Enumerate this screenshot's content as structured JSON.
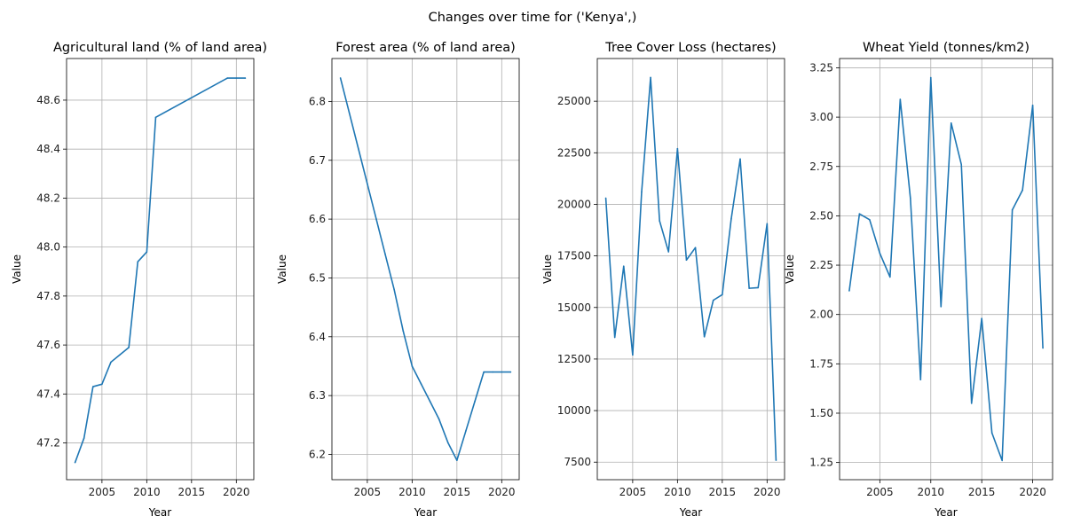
{
  "figure": {
    "suptitle": "Changes over time for ('Kenya',)",
    "line_color": "#1f77b4"
  },
  "chart_data": [
    {
      "type": "line",
      "title": "Agricultural land (% of land area)",
      "xlabel": "Year",
      "ylabel": "Value",
      "grid": true,
      "xlim": [
        2001.05,
        2021.95
      ],
      "ylim": [
        47.05,
        48.77
      ],
      "xticks": [
        2005,
        2010,
        2015,
        2020
      ],
      "yticks": [
        47.2,
        47.4,
        47.6,
        47.8,
        48.0,
        48.2,
        48.4,
        48.6
      ],
      "ytick_labels": [
        "47.2",
        "47.4",
        "47.6",
        "47.8",
        "48.0",
        "48.2",
        "48.4",
        "48.6"
      ],
      "x": [
        2002,
        2003,
        2004,
        2005,
        2006,
        2007,
        2008,
        2009,
        2010,
        2011,
        2019,
        2020,
        2021
      ],
      "y": [
        47.12,
        47.22,
        47.43,
        47.44,
        47.53,
        47.56,
        47.59,
        47.94,
        47.98,
        48.53,
        48.69,
        48.69,
        48.69
      ]
    },
    {
      "type": "line",
      "title": "Forest area (% of land area)",
      "xlabel": "Year",
      "ylabel": "Value",
      "grid": true,
      "xlim": [
        2001.05,
        2021.95
      ],
      "ylim": [
        6.157,
        6.873
      ],
      "xticks": [
        2005,
        2010,
        2015,
        2020
      ],
      "yticks": [
        6.2,
        6.3,
        6.4,
        6.5,
        6.6,
        6.7,
        6.8
      ],
      "ytick_labels": [
        "6.2",
        "6.3",
        "6.4",
        "6.5",
        "6.6",
        "6.7",
        "6.8"
      ],
      "x": [
        2002,
        2003,
        2004,
        2005,
        2006,
        2007,
        2008,
        2009,
        2010,
        2011,
        2012,
        2013,
        2014,
        2015,
        2016,
        2017,
        2018,
        2019,
        2020,
        2021
      ],
      "y": [
        6.84,
        6.78,
        6.72,
        6.66,
        6.6,
        6.54,
        6.48,
        6.41,
        6.35,
        6.32,
        6.29,
        6.26,
        6.22,
        6.19,
        6.24,
        6.29,
        6.34,
        6.34,
        6.34,
        6.34
      ]
    },
    {
      "type": "line",
      "title": "Tree Cover Loss (hectares)",
      "xlabel": "Year",
      "ylabel": "Value",
      "grid": true,
      "xlim": [
        2001.05,
        2021.95
      ],
      "ylim": [
        6650,
        27070
      ],
      "xticks": [
        2005,
        2010,
        2015,
        2020
      ],
      "yticks": [
        7500,
        10000,
        12500,
        15000,
        17500,
        20000,
        22500,
        25000
      ],
      "ytick_labels": [
        "7500",
        "10000",
        "12500",
        "15000",
        "17500",
        "20000",
        "22500",
        "25000"
      ],
      "x": [
        2002,
        2003,
        2004,
        2005,
        2006,
        2007,
        2008,
        2009,
        2010,
        2011,
        2012,
        2013,
        2014,
        2015,
        2016,
        2017,
        2018,
        2019,
        2020,
        2021
      ],
      "y": [
        20300,
        13550,
        17000,
        12700,
        20600,
        26150,
        19200,
        17700,
        22700,
        17300,
        17900,
        13580,
        15350,
        15620,
        19300,
        22200,
        15930,
        15960,
        19060,
        7590
      ]
    },
    {
      "type": "line",
      "title": "Wheat Yield (tonnes/km2)",
      "xlabel": "Year",
      "ylabel": "Value",
      "grid": true,
      "xlim": [
        2001.05,
        2021.95
      ],
      "ylim": [
        1.163,
        3.297
      ],
      "xticks": [
        2005,
        2010,
        2015,
        2020
      ],
      "yticks": [
        1.25,
        1.5,
        1.75,
        2.0,
        2.25,
        2.5,
        2.75,
        3.0,
        3.25
      ],
      "ytick_labels": [
        "1.25",
        "1.50",
        "1.75",
        "2.00",
        "2.25",
        "2.50",
        "2.75",
        "3.00",
        "3.25"
      ],
      "x": [
        2002,
        2003,
        2004,
        2005,
        2006,
        2007,
        2008,
        2009,
        2010,
        2011,
        2012,
        2013,
        2014,
        2015,
        2016,
        2017,
        2018,
        2019,
        2020,
        2021
      ],
      "y": [
        2.12,
        2.51,
        2.48,
        2.31,
        2.19,
        3.09,
        2.59,
        1.67,
        3.2,
        2.04,
        2.97,
        2.76,
        1.55,
        1.98,
        1.4,
        1.26,
        2.53,
        2.63,
        3.06,
        1.83
      ]
    }
  ]
}
